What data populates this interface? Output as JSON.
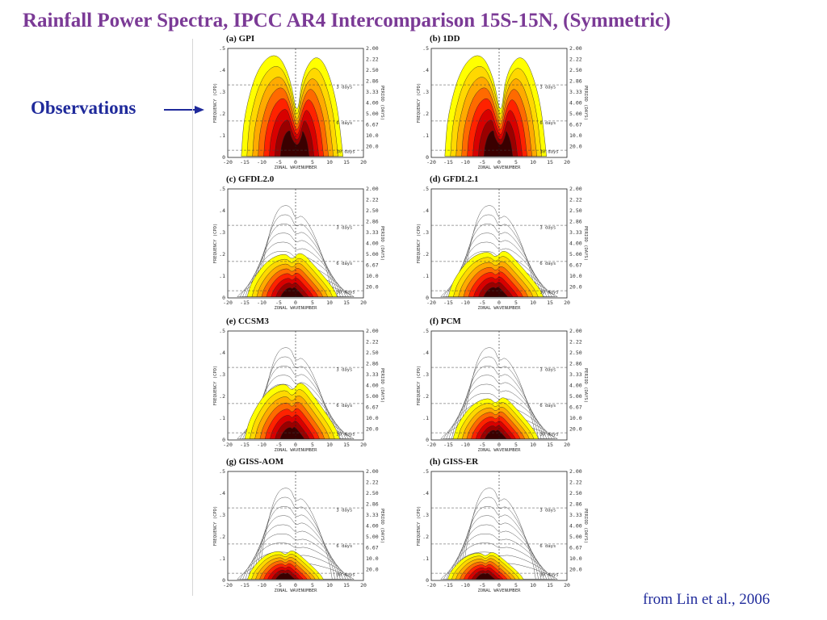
{
  "title": "Rainfall Power Spectra, IPCC AR4 Intercomparison 15S-15N,  (Symmetric)",
  "observations_label": "Observations",
  "credit": "from Lin et al., 2006",
  "axes": {
    "ylabel": "FREQUENCY (CPD)",
    "y2label": "PERIOD (DAYS)",
    "xlabel": "ZONAL WAVENUMBER",
    "yticks": [
      ".5",
      ".4",
      ".3",
      ".2",
      ".1",
      "0"
    ],
    "period_ticks": [
      "2.00",
      "2.22",
      "2.50",
      "2.86",
      "3.33",
      "4.00",
      "5.00",
      "6.67",
      "10.0",
      "20.0"
    ],
    "xticks": [
      "-20",
      "-15",
      "-10",
      "-5",
      "0",
      "5",
      "10",
      "15",
      "20"
    ],
    "day_labels": [
      "3 days",
      "6 days",
      "30 days"
    ]
  },
  "colors": {
    "title": "#7b3a96",
    "text_blue": "#1f2a9b",
    "shading": [
      "#ffff00",
      "#ffd800",
      "#ffaa00",
      "#ff6a00",
      "#ff2200",
      "#d80000",
      "#9a0000",
      "#3a0000"
    ]
  },
  "panels": [
    {
      "label": "(a) GPI"
    },
    {
      "label": "(b) 1DD"
    },
    {
      "label": "(c) GFDL2.0"
    },
    {
      "label": "(d) GFDL2.1"
    },
    {
      "label": "(e) CCSM3"
    },
    {
      "label": "(f) PCM"
    },
    {
      "label": "(g) GISS-AOM"
    },
    {
      "label": "(h) GISS-ER"
    }
  ]
}
